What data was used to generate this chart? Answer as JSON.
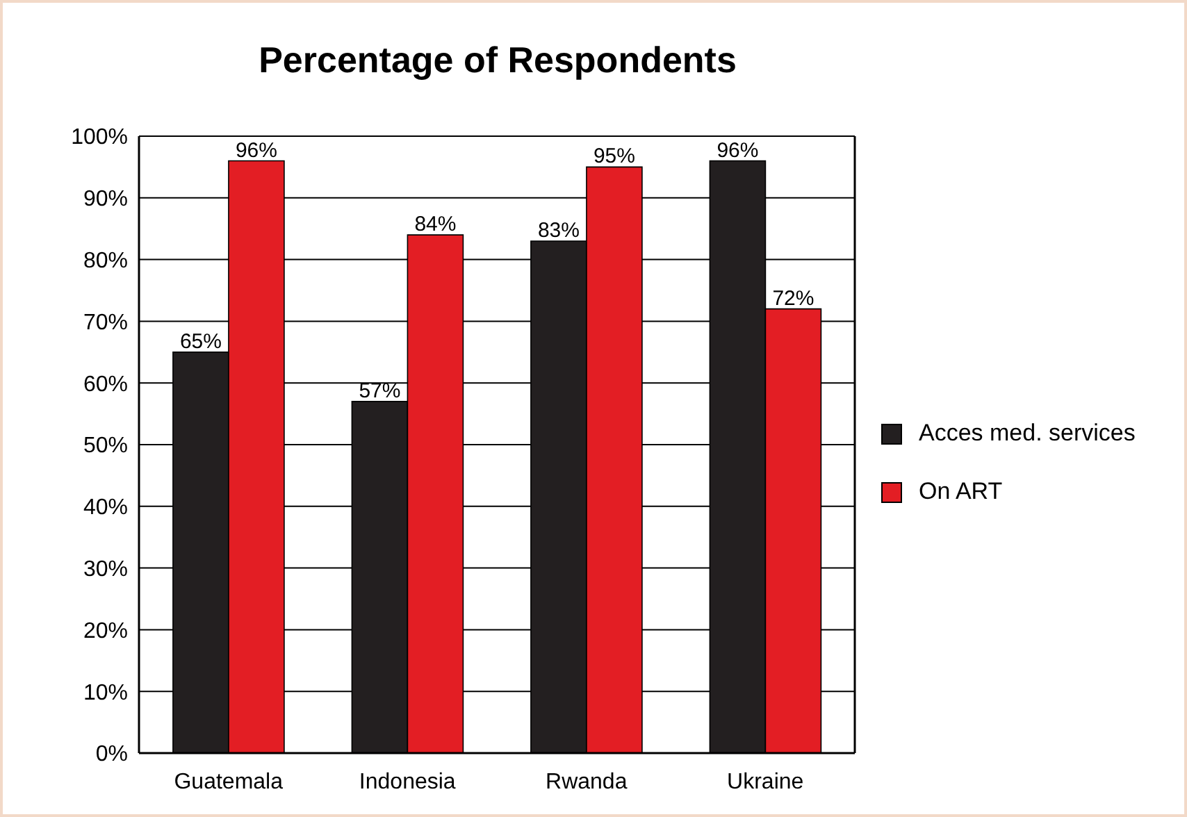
{
  "chart_data": {
    "type": "bar",
    "title": "Percentage of Respondents",
    "categories": [
      "Guatemala",
      "Indonesia",
      "Rwanda",
      "Ukraine"
    ],
    "series": [
      {
        "name": "Acces med. services",
        "color": "#231f20",
        "values": [
          65,
          57,
          83,
          96
        ],
        "value_labels": [
          "65%",
          "57%",
          "83%",
          "96%"
        ]
      },
      {
        "name": "On ART",
        "color": "#e31e24",
        "values": [
          96,
          84,
          95,
          72
        ],
        "value_labels": [
          "96%",
          "84%",
          "95%",
          "72%"
        ]
      }
    ],
    "ylim": [
      0,
      100
    ],
    "yticks": [
      {
        "value": 0,
        "label": "0%"
      },
      {
        "value": 10,
        "label": "10%"
      },
      {
        "value": 20,
        "label": "20%"
      },
      {
        "value": 30,
        "label": "30%"
      },
      {
        "value": 40,
        "label": "40%"
      },
      {
        "value": 50,
        "label": "50%"
      },
      {
        "value": 60,
        "label": "60%"
      },
      {
        "value": 70,
        "label": "70%"
      },
      {
        "value": 80,
        "label": "80%"
      },
      {
        "value": 90,
        "label": "90%"
      },
      {
        "value": 100,
        "label": "100%"
      }
    ],
    "grid": "y",
    "legend": "right"
  }
}
